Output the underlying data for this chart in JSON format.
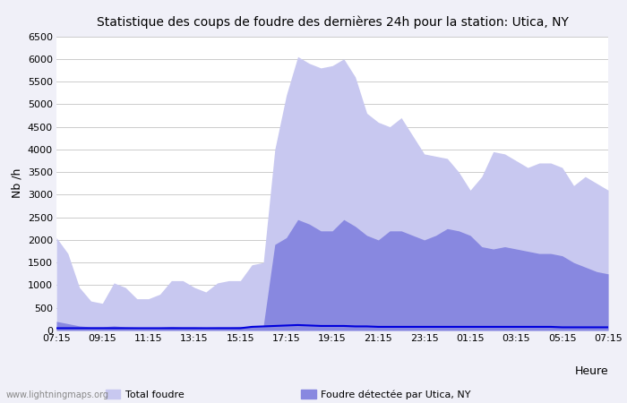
{
  "title": "Statistique des coups de foudre des dernières 24h pour la station: Utica, NY",
  "xlabel": "Heure",
  "ylabel": "Nb /h",
  "ylim": [
    0,
    6500
  ],
  "yticks": [
    0,
    500,
    1000,
    1500,
    2000,
    2500,
    3000,
    3500,
    4000,
    4500,
    5000,
    5500,
    6000,
    6500
  ],
  "xtick_labels": [
    "07:15",
    "09:15",
    "11:15",
    "13:15",
    "15:15",
    "17:15",
    "19:15",
    "21:15",
    "23:15",
    "01:15",
    "03:15",
    "05:15",
    "07:15"
  ],
  "bg_color": "#f0f0f8",
  "plot_bg_color": "#ffffff",
  "color_total": "#c8c8f0",
  "color_local": "#8888e0",
  "color_mean": "#0000dd",
  "watermark": "www.lightningmaps.org",
  "total_foudre": [
    2050,
    1700,
    950,
    650,
    600,
    1050,
    950,
    700,
    700,
    800,
    1100,
    1100,
    950,
    850,
    1050,
    1100,
    1100,
    1450,
    1500,
    4000,
    5200,
    6050,
    5900,
    5800,
    5850,
    6000,
    5600,
    4800,
    4600,
    4500,
    4700,
    4300,
    3900,
    3850,
    3800,
    3500,
    3100,
    3400,
    3950,
    3900,
    3750,
    3600,
    3700,
    3700,
    3600,
    3200,
    3400,
    3250,
    3100
  ],
  "local_foudre": [
    200,
    150,
    100,
    80,
    80,
    100,
    80,
    70,
    60,
    70,
    90,
    80,
    80,
    70,
    80,
    80,
    90,
    80,
    100,
    1900,
    2050,
    2450,
    2350,
    2200,
    2200,
    2450,
    2300,
    2100,
    2000,
    2200,
    2200,
    2100,
    2000,
    2100,
    2250,
    2200,
    2100,
    1850,
    1800,
    1850,
    1800,
    1750,
    1700,
    1700,
    1650,
    1500,
    1400,
    1300,
    1250
  ],
  "mean_line": [
    50,
    50,
    50,
    50,
    50,
    50,
    50,
    50,
    50,
    50,
    50,
    50,
    50,
    50,
    50,
    50,
    50,
    80,
    90,
    100,
    110,
    120,
    110,
    100,
    100,
    100,
    90,
    90,
    80,
    80,
    80,
    80,
    80,
    80,
    80,
    80,
    80,
    80,
    80,
    80,
    80,
    80,
    80,
    80,
    70,
    70,
    70,
    70,
    70
  ]
}
